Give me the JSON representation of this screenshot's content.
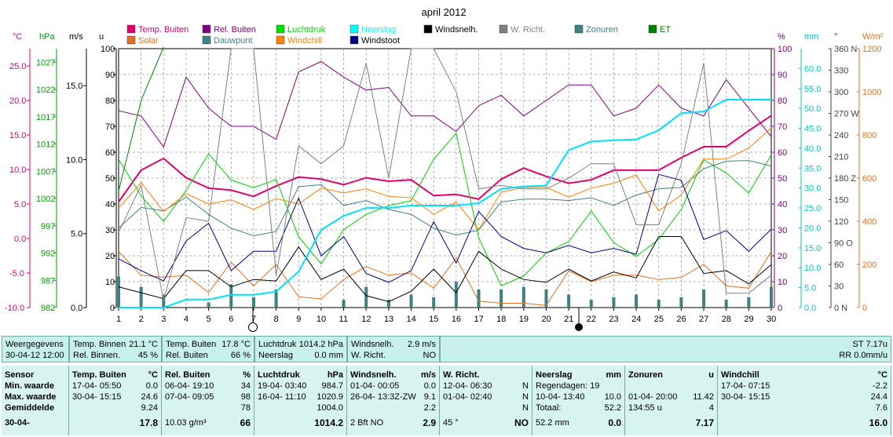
{
  "chart_data": {
    "type": "line",
    "title": "april 2012",
    "x": [
      1,
      2,
      3,
      4,
      5,
      6,
      7,
      8,
      9,
      10,
      11,
      12,
      13,
      14,
      15,
      16,
      17,
      18,
      19,
      20,
      21,
      22,
      23,
      24,
      25,
      26,
      27,
      28,
      29,
      30
    ],
    "axes": {
      "temp_c": {
        "label": "°C",
        "ticks": [
          "25.0",
          "20.0",
          "15.0",
          "10.0",
          "5.0",
          "0.0",
          "-5.0",
          "-10.0"
        ],
        "color": "#e0006c"
      },
      "hpa": {
        "label": "hPa",
        "ticks": [
          "1027",
          "1022",
          "1017",
          "1012",
          "1007",
          "1002",
          "997",
          "992",
          "987",
          "982"
        ],
        "color": "#00a000"
      },
      "ms": {
        "label": "m/s",
        "ticks": [
          "15.0",
          "10.0",
          "5.0",
          "0.0"
        ]
      },
      "u": {
        "label": "u",
        "ticks": [
          "100",
          "90",
          "80",
          "70",
          "60",
          "50",
          "40",
          "30",
          "20",
          "10",
          "0"
        ]
      },
      "pct": {
        "label": "%",
        "ticks": [
          "100",
          "90",
          "80",
          "70",
          "60",
          "50",
          "40",
          "30",
          "20",
          "10",
          "0"
        ],
        "color": "#800080"
      },
      "mm": {
        "label": "mm",
        "ticks": [
          "60.0",
          "55.0",
          "50.0",
          "45.0",
          "40.0",
          "35.0",
          "30.0",
          "25.0",
          "20.0",
          "15.0",
          "10.0",
          "5.0",
          "0.0"
        ],
        "color": "#00c8c8"
      },
      "deg": {
        "label": "°",
        "ticks": [
          "360 N",
          "330",
          "300",
          "270 W",
          "240",
          "210",
          "180 Z",
          "150",
          "120",
          "90 O",
          "60",
          "30",
          "0 N"
        ]
      },
      "wm2": {
        "label": "W/m²",
        "ticks": [
          "1200",
          "1000",
          "800",
          "600",
          "400",
          "200",
          "0"
        ],
        "color": "#e07020"
      }
    },
    "legend": [
      {
        "name": "Temp. Buiten",
        "color": "#e0006c"
      },
      {
        "name": "Solar",
        "color": "#e07020"
      },
      {
        "name": "Rel. Buiten",
        "color": "#800080"
      },
      {
        "name": "Dauwpunt",
        "color": "#408080"
      },
      {
        "name": "Luchtdruk",
        "color": "#00e000"
      },
      {
        "name": "Windchill",
        "color": "#ff8000"
      },
      {
        "name": "Neerslag",
        "color": "#00ffff"
      },
      {
        "name": "Windstoot",
        "color": "#000080"
      },
      {
        "name": "Windsnelh.",
        "color": "#000000"
      },
      {
        "name": "W. Richt.",
        "color": "#808080"
      },
      {
        "name": "Zonuren",
        "color": "#408080"
      },
      {
        "name": "ET",
        "color": "#008000"
      }
    ],
    "series": [
      {
        "name": "Temp. Buiten",
        "axis": "temp_c",
        "color": "#e0006c",
        "width": 2,
        "values": [
          5.3,
          9.9,
          11.6,
          8.8,
          7.3,
          7.0,
          6.1,
          7.6,
          8.9,
          8.6,
          7.8,
          8.8,
          8.3,
          8.5,
          6.2,
          6.4,
          5.7,
          8.6,
          10.2,
          9.0,
          8.0,
          8.5,
          9.9,
          9.9,
          9.9,
          11.7,
          13.3,
          13.3,
          15.6,
          17.8
        ]
      },
      {
        "name": "Rel. Buiten",
        "axis": "pct",
        "color": "#800080",
        "width": 1,
        "values": [
          76,
          74,
          62,
          89,
          77,
          70,
          70,
          65,
          91,
          95,
          89,
          84,
          85,
          74,
          74,
          68,
          78,
          82,
          74,
          80,
          86,
          86,
          74,
          77,
          86,
          77,
          74,
          88,
          77,
          66
        ]
      },
      {
        "name": "Luchtdruk",
        "axis": "hpa",
        "color": "#00d000",
        "width": 1,
        "values": [
          1009.2,
          1002.5,
          997.8,
          1003.5,
          1010.2,
          1005.4,
          1004.0,
          1005.5,
          995.0,
          990.0,
          996.3,
          999.1,
          1000.7,
          1001.6,
          1009.2,
          1014.0,
          994.8,
          986.0,
          987.8,
          992.0,
          994.1,
          999.7,
          993.9,
          991.4,
          994.5,
          1000.0,
          1009.1,
          1006.7,
          1003.0,
          1010.0
        ]
      },
      {
        "name": "Dauwpunt",
        "axis": "temp_c",
        "color": "#408080",
        "width": 1,
        "values": [
          1.5,
          4.5,
          4.0,
          6.0,
          3.5,
          1.5,
          0.4,
          1.0,
          7.5,
          7.8,
          4.8,
          5.5,
          4.2,
          3.5,
          1.5,
          0.5,
          1.2,
          5.3,
          5.7,
          5.7,
          5.5,
          5.9,
          4.8,
          6.3,
          7.2,
          7.4,
          10.1,
          11.2,
          11.3,
          10.5
        ]
      },
      {
        "name": "Windchill",
        "axis": "temp_c",
        "color": "#ff8000",
        "width": 1,
        "values": [
          4.4,
          8.1,
          3.9,
          6.5,
          5.0,
          5.6,
          4.2,
          5.8,
          5.0,
          7.3,
          6.6,
          7.2,
          6.1,
          5.9,
          3.5,
          5.3,
          1.3,
          6.7,
          7.4,
          7.4,
          6.0,
          7.3,
          8.0,
          9.2,
          4.0,
          6.3,
          11.5,
          11.5,
          13.1,
          16.0
        ]
      },
      {
        "name": "Solar",
        "axis": "wm2",
        "color": "#e07020",
        "width": 1,
        "values": [
          260,
          150,
          140,
          150,
          70,
          210,
          100,
          200,
          50,
          40,
          130,
          190,
          150,
          160,
          90,
          230,
          30,
          20,
          20,
          10,
          170,
          120,
          150,
          150,
          130,
          140,
          200,
          100,
          90,
          260
        ]
      },
      {
        "name": "Windstoot",
        "axis": "ms",
        "color": "#000080",
        "width": 1,
        "values": [
          3.3,
          2.5,
          1.8,
          4.5,
          5.7,
          2.5,
          3.8,
          3.8,
          7.4,
          3.5,
          4.8,
          2.3,
          1.7,
          2.5,
          5.8,
          3.0,
          6.5,
          4.8,
          4.0,
          3.7,
          4.2,
          3.7,
          4.0,
          3.6,
          9.0,
          8.6,
          4.6,
          5.2,
          3.8,
          5.3
        ]
      },
      {
        "name": "Windsnelh.",
        "axis": "ms",
        "color": "#000000",
        "width": 1,
        "values": [
          1.4,
          1.0,
          0.6,
          2.5,
          2.5,
          1.4,
          1.9,
          1.8,
          4.1,
          1.9,
          2.6,
          0.8,
          0.4,
          1.1,
          2.6,
          1.0,
          3.8,
          2.6,
          1.9,
          1.7,
          2.6,
          1.8,
          2.4,
          2.0,
          4.8,
          4.8,
          2.3,
          2.5,
          1.6,
          2.9
        ]
      },
      {
        "name": "W. Richt.",
        "axis": "deg",
        "color": "#808080",
        "width": 1,
        "values": [
          105,
          170,
          10,
          125,
          120,
          360,
          360,
          45,
          225,
          200,
          225,
          340,
          180,
          360,
          360,
          300,
          165,
          170,
          165,
          165,
          180,
          200,
          200,
          115,
          115,
          200,
          340,
          20,
          20,
          45
        ]
      },
      {
        "name": "Neerslag",
        "axis": "mm",
        "color": "#00e0ff",
        "width": 2,
        "values": [
          0.0,
          0.0,
          0.0,
          2.0,
          2.0,
          3.2,
          3.2,
          4.0,
          9.0,
          19.5,
          23.0,
          25.0,
          25.0,
          25.6,
          25.6,
          25.6,
          26.2,
          29.8,
          30.4,
          30.6,
          39.5,
          41.7,
          42.0,
          42.2,
          44.5,
          48.8,
          49.2,
          52.2,
          52.2,
          52.2
        ]
      },
      {
        "name": "Zonuren",
        "axis": "u",
        "color": "#408080",
        "type": "bar",
        "values": [
          12,
          8,
          5,
          0,
          2,
          9,
          4,
          7,
          0,
          0,
          3,
          8,
          3,
          5,
          4,
          10,
          7,
          7,
          8,
          7,
          5,
          3,
          4,
          5,
          3,
          4,
          7,
          3,
          4,
          8
        ]
      },
      {
        "name": "ET",
        "axis": "u",
        "color": "#008000",
        "width": 1,
        "values": [
          45,
          80,
          110,
          null,
          null,
          null,
          null,
          null,
          null,
          null,
          null,
          null,
          null,
          null,
          null,
          null,
          null,
          null,
          null,
          null,
          null,
          null,
          null,
          null,
          null,
          null,
          null,
          null,
          null,
          null
        ]
      }
    ],
    "grid": true
  },
  "table": {
    "row1": [
      {
        "l1": "Weergegevens",
        "v1": "",
        "l2": "30-04-12 12:00",
        "v2": ""
      },
      {
        "l1": "Temp. Binnen",
        "v1": "21.1 °C",
        "l2": "Rel. Binnen.",
        "v2": "45 %"
      },
      {
        "l1": "Temp. Buiten",
        "v1": "17.8 °C",
        "l2": "Rel. Buiten",
        "v2": "66 %"
      },
      {
        "l1": "Luchtdruk",
        "v1": "1014.2 hPa",
        "l2": "Neerslag",
        "v2": "0.0 mm"
      },
      {
        "l1": "Windsnelh.",
        "v1": "2.9 m/s",
        "l2": "W. Richt.",
        "v2": "NO"
      },
      {
        "l1": "",
        "v1": "ST 7.17u",
        "l2": "",
        "v2": "RR 0.0mm/u"
      }
    ],
    "sensor": {
      "title": "Sensor",
      "rows": [
        "Min. waarde",
        "Max. waarde",
        "Gemiddelde",
        "30-04-"
      ]
    },
    "cols": [
      {
        "head": "Temp. Buiten",
        "unit": "°C",
        "rows": [
          [
            "17-04-  05:50",
            "0.0"
          ],
          [
            "30-04-  15:15",
            "24.6"
          ],
          [
            "",
            "9.24"
          ],
          [
            "",
            "17.8"
          ]
        ]
      },
      {
        "head": "Rel. Buiten",
        "unit": "%",
        "rows": [
          [
            "06-04-  19:10",
            "34"
          ],
          [
            "07-04-  09:05",
            "98"
          ],
          [
            "",
            "78"
          ],
          [
            "10.03 g/m³",
            "66"
          ]
        ]
      },
      {
        "head": "Luchtdruk",
        "unit": "hPa",
        "rows": [
          [
            "19-04-  03:40",
            "984.7"
          ],
          [
            "16-04-  11:10",
            "1020.9"
          ],
          [
            "",
            "1004.0"
          ],
          [
            "",
            "1014.2"
          ]
        ]
      },
      {
        "head": "Windsnelh.",
        "unit": "m/s",
        "rows": [
          [
            "01-04-  00:05",
            "0.0"
          ],
          [
            "26-04-  13:3Z-ZW",
            "9.1"
          ],
          [
            "",
            "2.2"
          ],
          [
            "2 Bft NO",
            "2.9"
          ]
        ]
      },
      {
        "head": "W. Richt.",
        "unit": "",
        "rows": [
          [
            "12-04-  06:30",
            "N"
          ],
          [
            "01-04-  02:40",
            "N"
          ],
          [
            "",
            "N"
          ],
          [
            "45 °",
            "NO"
          ]
        ]
      },
      {
        "head": "Neerslag",
        "unit": "mm",
        "rows": [
          [
            "Regendagen: 19",
            ""
          ],
          [
            "10-04-  13:40",
            "10.0"
          ],
          [
            "Totaal:",
            "52.2"
          ],
          [
            "52.2 mm",
            "0.0"
          ]
        ]
      },
      {
        "head": "Zonuren",
        "unit": "u",
        "rows": [
          [
            "",
            ""
          ],
          [
            "01-04-  20:00",
            "11.42"
          ],
          [
            "134:55 u",
            "4"
          ],
          [
            "",
            "7.17"
          ]
        ]
      },
      {
        "head": "Windchill",
        "unit": "°C",
        "rows": [
          [
            "17-04-  07:15",
            "-2.2"
          ],
          [
            "30-04-  15:15",
            "24.4"
          ],
          [
            "",
            "7.6"
          ],
          [
            "",
            "16.0"
          ]
        ]
      }
    ]
  }
}
